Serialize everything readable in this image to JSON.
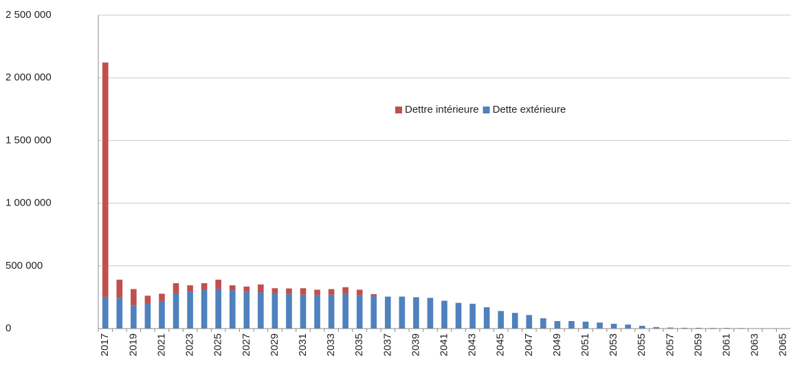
{
  "chart_data": {
    "type": "stacked_bar",
    "categories": [
      "2017",
      null,
      "2019",
      null,
      "2021",
      null,
      "2023",
      null,
      "2025",
      null,
      "2027",
      null,
      "2029",
      null,
      "2031",
      null,
      "2033",
      null,
      "2035",
      null,
      "2037",
      null,
      "2039",
      null,
      "2041",
      null,
      "2043",
      null,
      "2045",
      null,
      "2047",
      null,
      "2049",
      null,
      "2051",
      null,
      "2053",
      null,
      "2055",
      null,
      "2057",
      null,
      "2059",
      null,
      "2061",
      null,
      "2063",
      null,
      "2065"
    ],
    "series": [
      {
        "name": "Dette extérieure",
        "color": "#4f81bd",
        "values": [
          252000,
          245000,
          185000,
          200000,
          220000,
          280000,
          295000,
          310000,
          315000,
          305000,
          295000,
          290000,
          280000,
          275000,
          270000,
          268000,
          270000,
          275000,
          265000,
          260000,
          255000,
          255000,
          250000,
          245000,
          222000,
          205000,
          198000,
          170000,
          140000,
          125000,
          108000,
          82000,
          60000,
          60000,
          55000,
          48000,
          38000,
          32000,
          22000,
          12000,
          8000,
          6000,
          6000,
          5000,
          5000,
          4000,
          0,
          0,
          0
        ]
      },
      {
        "name": "Dettre intérieure",
        "color": "#c0504d",
        "values": [
          1870000,
          145000,
          130000,
          62000,
          58000,
          82000,
          50000,
          52000,
          75000,
          40000,
          40000,
          62000,
          42000,
          45000,
          52000,
          42000,
          45000,
          55000,
          45000,
          15000,
          0,
          0,
          0,
          0,
          0,
          0,
          0,
          0,
          0,
          0,
          0,
          0,
          0,
          0,
          0,
          0,
          0,
          0,
          0,
          0,
          0,
          0,
          0,
          0,
          0,
          0,
          0,
          0,
          0
        ]
      }
    ],
    "ylim": [
      0,
      2500000
    ],
    "yticks": [
      0,
      {
        "value": 500000,
        "label": "500 000"
      },
      {
        "value": 1000000,
        "label": "1 000 000"
      },
      {
        "value": 1500000,
        "label": "1 500 000"
      },
      {
        "value": 2000000,
        "label": "2 000 000"
      },
      {
        "value": 2500000,
        "label": "2 500 000"
      }
    ],
    "grid": true
  }
}
